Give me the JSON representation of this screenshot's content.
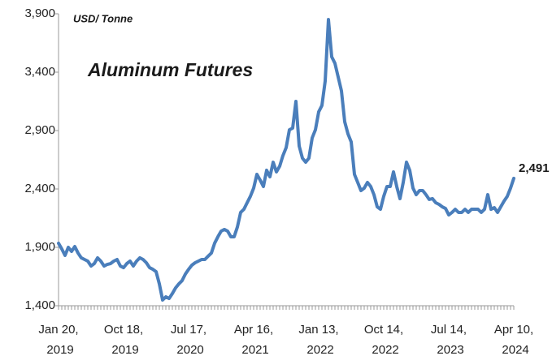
{
  "chart_data": {
    "type": "line",
    "title": "Aluminum Futures",
    "subtitle": "USD/ Tonne",
    "x_labels": [
      "Jan 20, 2019",
      "Oct 18, 2019",
      "Jul 17, 2020",
      "Apr 16, 2021",
      "Jan 13, 2022",
      "Oct 14, 2022",
      "Jul 14, 2023",
      "Apr 10, 2024"
    ],
    "series": [
      {
        "name": "Aluminum Futures",
        "color": "#4a7ebb",
        "values": [
          1935,
          1886,
          1831,
          1900,
          1865,
          1907,
          1851,
          1810,
          1796,
          1782,
          1740,
          1761,
          1810,
          1782,
          1740,
          1754,
          1761,
          1782,
          1796,
          1740,
          1726,
          1761,
          1782,
          1740,
          1782,
          1810,
          1796,
          1768,
          1726,
          1712,
          1692,
          1587,
          1449,
          1476,
          1462,
          1504,
          1553,
          1587,
          1615,
          1671,
          1712,
          1747,
          1768,
          1782,
          1796,
          1796,
          1824,
          1851,
          1935,
          1990,
          2039,
          2053,
          2039,
          1990,
          1990,
          2074,
          2199,
          2226,
          2282,
          2337,
          2407,
          2525,
          2476,
          2421,
          2560,
          2504,
          2629,
          2546,
          2594,
          2685,
          2754,
          2907,
          2921,
          3150,
          2768,
          2664,
          2629,
          2664,
          2837,
          2907,
          3060,
          3115,
          3324,
          3851,
          3532,
          3476,
          3358,
          3240,
          2976,
          2872,
          2803,
          2525,
          2456,
          2386,
          2407,
          2456,
          2421,
          2351,
          2247,
          2226,
          2337,
          2421,
          2421,
          2546,
          2421,
          2317,
          2456,
          2629,
          2560,
          2407,
          2351,
          2386,
          2386,
          2351,
          2310,
          2317,
          2282,
          2268,
          2247,
          2233,
          2178,
          2199,
          2226,
          2199,
          2199,
          2226,
          2199,
          2226,
          2226,
          2226,
          2199,
          2226,
          2351,
          2226,
          2240,
          2199,
          2247,
          2296,
          2337,
          2407,
          2491
        ]
      }
    ],
    "end_label": "2,491",
    "ylim": [
      1400,
      3900
    ],
    "yticks": [
      {
        "value": 1400,
        "label": "1,400"
      },
      {
        "value": 1900,
        "label": "1,900"
      },
      {
        "value": 2400,
        "label": "2,400"
      },
      {
        "value": 2900,
        "label": "2,900"
      },
      {
        "value": 3400,
        "label": "3,400"
      },
      {
        "value": 3900,
        "label": "3,900"
      }
    ],
    "grid": false
  }
}
